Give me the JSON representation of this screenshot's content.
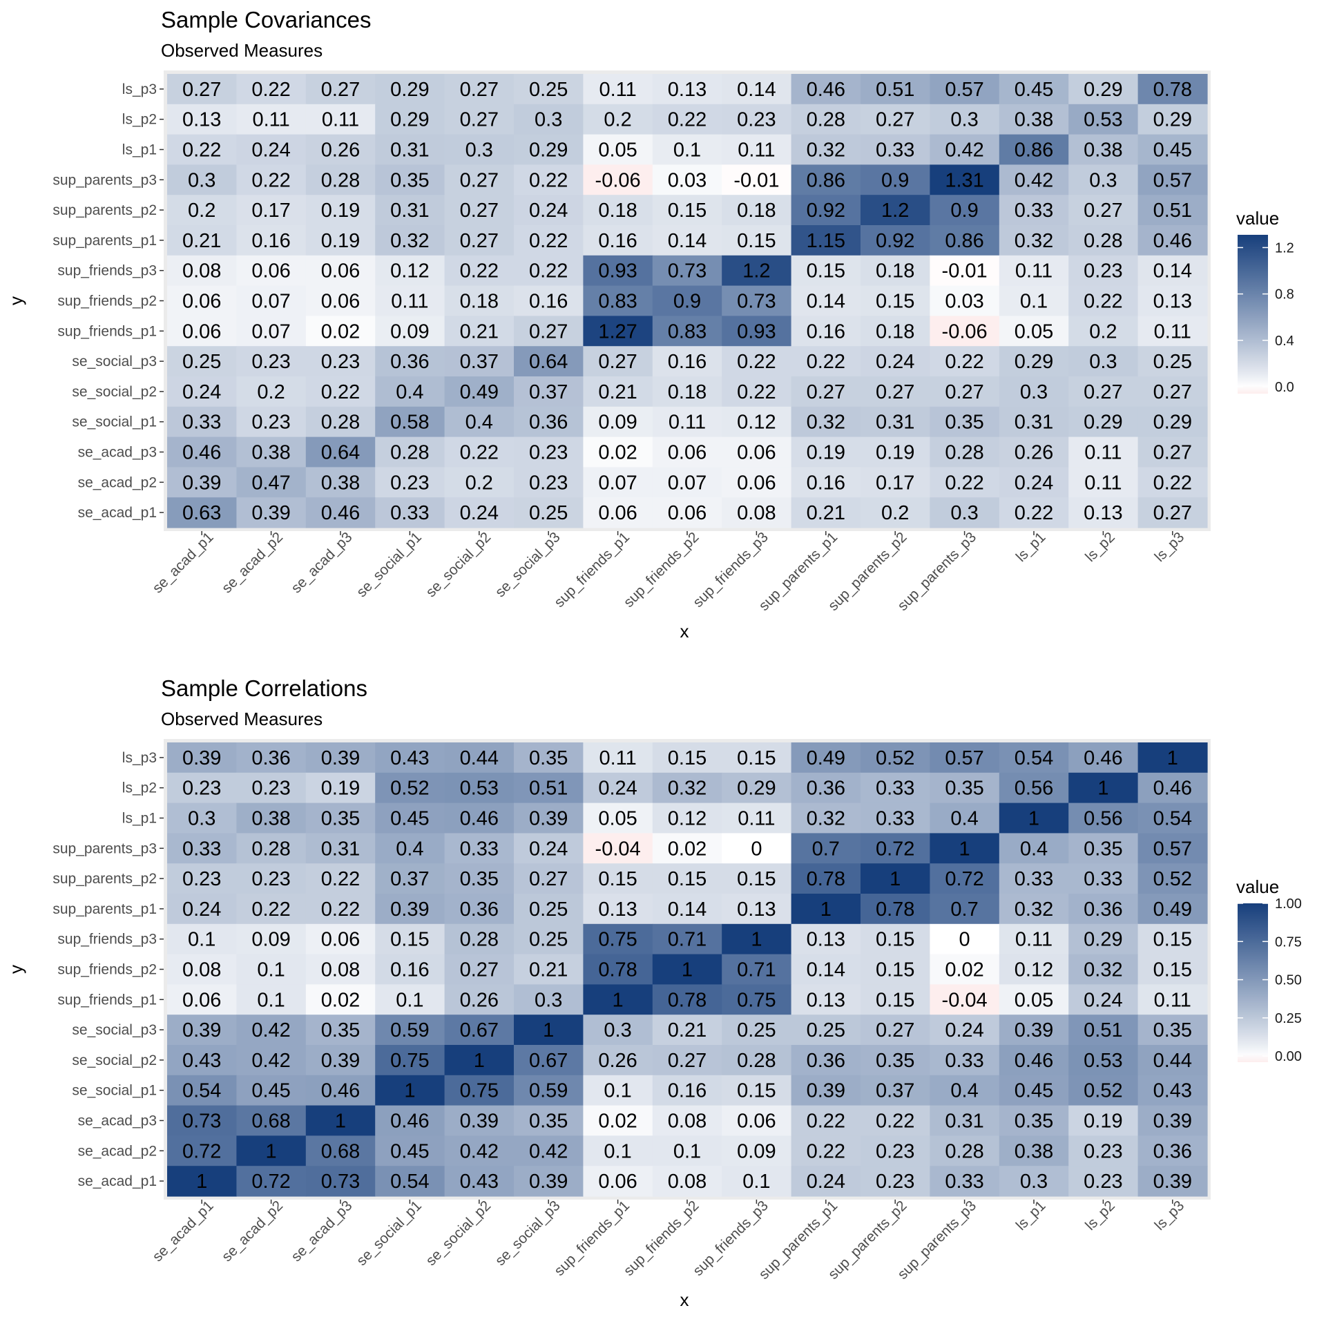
{
  "chart_data": [
    {
      "type": "heatmap",
      "title": "Sample Covariances",
      "subtitle": "Observed Measures",
      "xlabel": "x",
      "ylabel": "y",
      "legend_title": "value",
      "legend_position": "right",
      "legend_ticks": [
        "0.0",
        "0.4",
        "0.8",
        "1.2"
      ],
      "legend_tick_values": [
        0,
        0.4,
        0.8,
        1.2
      ],
      "value_range": [
        -0.06,
        1.31
      ],
      "colors": {
        "low": "#fdeeee",
        "mid": "#ffffff",
        "high": "#173f7c",
        "panel": "#ebebeb"
      },
      "x": [
        "se_acad_p1",
        "se_acad_p2",
        "se_acad_p3",
        "se_social_p1",
        "se_social_p2",
        "se_social_p3",
        "sup_friends_p1",
        "sup_friends_p2",
        "sup_friends_p3",
        "sup_parents_p1",
        "sup_parents_p2",
        "sup_parents_p3",
        "ls_p1",
        "ls_p2",
        "ls_p3"
      ],
      "y": [
        "ls_p3",
        "ls_p2",
        "ls_p1",
        "sup_parents_p3",
        "sup_parents_p2",
        "sup_parents_p1",
        "sup_friends_p3",
        "sup_friends_p2",
        "sup_friends_p1",
        "se_social_p3",
        "se_social_p2",
        "se_social_p1",
        "se_acad_p3",
        "se_acad_p2",
        "se_acad_p1"
      ],
      "values": [
        [
          0.27,
          0.22,
          0.27,
          0.29,
          0.27,
          0.25,
          0.11,
          0.13,
          0.14,
          0.46,
          0.51,
          0.57,
          0.45,
          0.29,
          0.78
        ],
        [
          0.13,
          0.11,
          0.11,
          0.29,
          0.27,
          0.3,
          0.2,
          0.22,
          0.23,
          0.28,
          0.27,
          0.3,
          0.38,
          0.53,
          0.29
        ],
        [
          0.22,
          0.24,
          0.26,
          0.31,
          0.3,
          0.29,
          0.05,
          0.1,
          0.11,
          0.32,
          0.33,
          0.42,
          0.86,
          0.38,
          0.45
        ],
        [
          0.3,
          0.22,
          0.28,
          0.35,
          0.27,
          0.22,
          -0.06,
          0.03,
          -0.01,
          0.86,
          0.9,
          1.31,
          0.42,
          0.3,
          0.57
        ],
        [
          0.2,
          0.17,
          0.19,
          0.31,
          0.27,
          0.24,
          0.18,
          0.15,
          0.18,
          0.92,
          1.2,
          0.9,
          0.33,
          0.27,
          0.51
        ],
        [
          0.21,
          0.16,
          0.19,
          0.32,
          0.27,
          0.22,
          0.16,
          0.14,
          0.15,
          1.15,
          0.92,
          0.86,
          0.32,
          0.28,
          0.46
        ],
        [
          0.08,
          0.06,
          0.06,
          0.12,
          0.22,
          0.22,
          0.93,
          0.73,
          1.2,
          0.15,
          0.18,
          -0.01,
          0.11,
          0.23,
          0.14
        ],
        [
          0.06,
          0.07,
          0.06,
          0.11,
          0.18,
          0.16,
          0.83,
          0.9,
          0.73,
          0.14,
          0.15,
          0.03,
          0.1,
          0.22,
          0.13
        ],
        [
          0.06,
          0.07,
          0.02,
          0.09,
          0.21,
          0.27,
          1.27,
          0.83,
          0.93,
          0.16,
          0.18,
          -0.06,
          0.05,
          0.2,
          0.11
        ],
        [
          0.25,
          0.23,
          0.23,
          0.36,
          0.37,
          0.64,
          0.27,
          0.16,
          0.22,
          0.22,
          0.24,
          0.22,
          0.29,
          0.3,
          0.25
        ],
        [
          0.24,
          0.2,
          0.22,
          0.4,
          0.49,
          0.37,
          0.21,
          0.18,
          0.22,
          0.27,
          0.27,
          0.27,
          0.3,
          0.27,
          0.27
        ],
        [
          0.33,
          0.23,
          0.28,
          0.58,
          0.4,
          0.36,
          0.09,
          0.11,
          0.12,
          0.32,
          0.31,
          0.35,
          0.31,
          0.29,
          0.29
        ],
        [
          0.46,
          0.38,
          0.64,
          0.28,
          0.22,
          0.23,
          0.02,
          0.06,
          0.06,
          0.19,
          0.19,
          0.28,
          0.26,
          0.11,
          0.27
        ],
        [
          0.39,
          0.47,
          0.38,
          0.23,
          0.2,
          0.23,
          0.07,
          0.07,
          0.06,
          0.16,
          0.17,
          0.22,
          0.24,
          0.11,
          0.22
        ],
        [
          0.63,
          0.39,
          0.46,
          0.33,
          0.24,
          0.25,
          0.06,
          0.06,
          0.08,
          0.21,
          0.2,
          0.3,
          0.22,
          0.13,
          0.27
        ]
      ]
    },
    {
      "type": "heatmap",
      "title": "Sample Correlations",
      "subtitle": "Observed Measures",
      "xlabel": "x",
      "ylabel": "y",
      "legend_title": "value",
      "legend_position": "right",
      "legend_ticks": [
        "0.00",
        "0.25",
        "0.50",
        "0.75",
        "1.00"
      ],
      "legend_tick_values": [
        0,
        0.25,
        0.5,
        0.75,
        1.0
      ],
      "value_range": [
        -0.04,
        1.0
      ],
      "colors": {
        "low": "#fdeeee",
        "mid": "#ffffff",
        "high": "#173f7c",
        "panel": "#ebebeb"
      },
      "x": [
        "se_acad_p1",
        "se_acad_p2",
        "se_acad_p3",
        "se_social_p1",
        "se_social_p2",
        "se_social_p3",
        "sup_friends_p1",
        "sup_friends_p2",
        "sup_friends_p3",
        "sup_parents_p1",
        "sup_parents_p2",
        "sup_parents_p3",
        "ls_p1",
        "ls_p2",
        "ls_p3"
      ],
      "y": [
        "ls_p3",
        "ls_p2",
        "ls_p1",
        "sup_parents_p3",
        "sup_parents_p2",
        "sup_parents_p1",
        "sup_friends_p3",
        "sup_friends_p2",
        "sup_friends_p1",
        "se_social_p3",
        "se_social_p2",
        "se_social_p1",
        "se_acad_p3",
        "se_acad_p2",
        "se_acad_p1"
      ],
      "values": [
        [
          0.39,
          0.36,
          0.39,
          0.43,
          0.44,
          0.35,
          0.11,
          0.15,
          0.15,
          0.49,
          0.52,
          0.57,
          0.54,
          0.46,
          1
        ],
        [
          0.23,
          0.23,
          0.19,
          0.52,
          0.53,
          0.51,
          0.24,
          0.32,
          0.29,
          0.36,
          0.33,
          0.35,
          0.56,
          1,
          0.46
        ],
        [
          0.3,
          0.38,
          0.35,
          0.45,
          0.46,
          0.39,
          0.05,
          0.12,
          0.11,
          0.32,
          0.33,
          0.4,
          1,
          0.56,
          0.54
        ],
        [
          0.33,
          0.28,
          0.31,
          0.4,
          0.33,
          0.24,
          -0.04,
          0.02,
          0,
          0.7,
          0.72,
          1,
          0.4,
          0.35,
          0.57
        ],
        [
          0.23,
          0.23,
          0.22,
          0.37,
          0.35,
          0.27,
          0.15,
          0.15,
          0.15,
          0.78,
          1,
          0.72,
          0.33,
          0.33,
          0.52
        ],
        [
          0.24,
          0.22,
          0.22,
          0.39,
          0.36,
          0.25,
          0.13,
          0.14,
          0.13,
          1,
          0.78,
          0.7,
          0.32,
          0.36,
          0.49
        ],
        [
          0.1,
          0.09,
          0.06,
          0.15,
          0.28,
          0.25,
          0.75,
          0.71,
          1,
          0.13,
          0.15,
          0,
          0.11,
          0.29,
          0.15
        ],
        [
          0.08,
          0.1,
          0.08,
          0.16,
          0.27,
          0.21,
          0.78,
          1,
          0.71,
          0.14,
          0.15,
          0.02,
          0.12,
          0.32,
          0.15
        ],
        [
          0.06,
          0.1,
          0.02,
          0.1,
          0.26,
          0.3,
          1,
          0.78,
          0.75,
          0.13,
          0.15,
          -0.04,
          0.05,
          0.24,
          0.11
        ],
        [
          0.39,
          0.42,
          0.35,
          0.59,
          0.67,
          1,
          0.3,
          0.21,
          0.25,
          0.25,
          0.27,
          0.24,
          0.39,
          0.51,
          0.35
        ],
        [
          0.43,
          0.42,
          0.39,
          0.75,
          1,
          0.67,
          0.26,
          0.27,
          0.28,
          0.36,
          0.35,
          0.33,
          0.46,
          0.53,
          0.44
        ],
        [
          0.54,
          0.45,
          0.46,
          1,
          0.75,
          0.59,
          0.1,
          0.16,
          0.15,
          0.39,
          0.37,
          0.4,
          0.45,
          0.52,
          0.43
        ],
        [
          0.73,
          0.68,
          1,
          0.46,
          0.39,
          0.35,
          0.02,
          0.08,
          0.06,
          0.22,
          0.22,
          0.31,
          0.35,
          0.19,
          0.39
        ],
        [
          0.72,
          1,
          0.68,
          0.45,
          0.42,
          0.42,
          0.1,
          0.1,
          0.09,
          0.22,
          0.23,
          0.28,
          0.38,
          0.23,
          0.36
        ],
        [
          1,
          0.72,
          0.73,
          0.54,
          0.43,
          0.39,
          0.06,
          0.08,
          0.1,
          0.24,
          0.23,
          0.33,
          0.3,
          0.23,
          0.39
        ]
      ]
    }
  ]
}
